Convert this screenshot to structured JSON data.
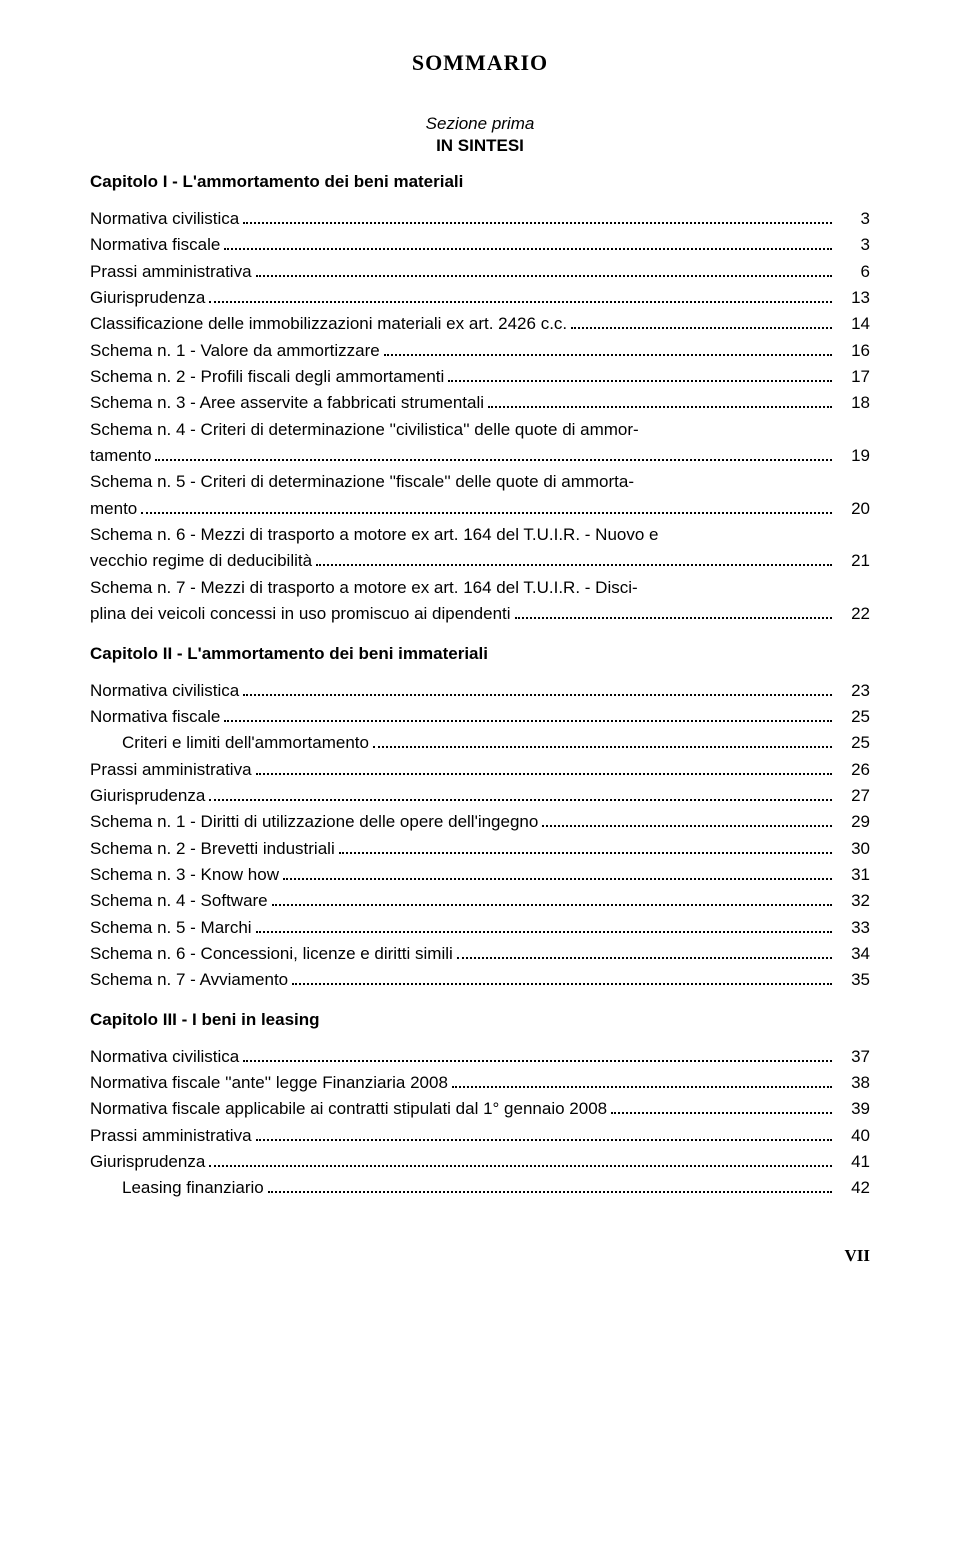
{
  "title": "SOMMARIO",
  "title_fontsize": 22,
  "section_label": "Sezione prima",
  "section_sub": "IN SINTESI",
  "body_fontsize": 17,
  "chapter_fontsize": 17,
  "section_fontsize": 17,
  "text_color": "#000000",
  "background_color": "#ffffff",
  "leader_color": "#000000",
  "chapters": [
    {
      "title": "Capitolo I - L'ammortamento dei beni materiali",
      "entries": [
        {
          "lines": [
            "Normativa civilistica"
          ],
          "page": 3
        },
        {
          "lines": [
            "Normativa fiscale"
          ],
          "page": 3
        },
        {
          "lines": [
            "Prassi amministrativa"
          ],
          "page": 6
        },
        {
          "lines": [
            "Giurisprudenza"
          ],
          "page": 13
        },
        {
          "lines": [
            "Classificazione delle immobilizzazioni materiali ex art. 2426 c.c."
          ],
          "page": 14
        },
        {
          "lines": [
            "Schema n. 1 - Valore da ammortizzare"
          ],
          "page": 16
        },
        {
          "lines": [
            "Schema n. 2 - Profili fiscali degli ammortamenti"
          ],
          "page": 17
        },
        {
          "lines": [
            "Schema n. 3 - Aree asservite a fabbricati strumentali"
          ],
          "page": 18
        },
        {
          "lines": [
            "Schema n. 4 - Criteri di determinazione ''civilistica'' delle quote di ammor-",
            "tamento"
          ],
          "page": 19
        },
        {
          "lines": [
            "Schema n. 5 - Criteri di determinazione ''fiscale'' delle quote di ammorta-",
            "mento"
          ],
          "page": 20
        },
        {
          "lines": [
            "Schema n. 6 - Mezzi di trasporto a motore ex art. 164 del T.U.I.R. - Nuovo e",
            "vecchio regime di deducibilità"
          ],
          "page": 21
        },
        {
          "lines": [
            "Schema n. 7 - Mezzi di trasporto a motore ex art. 164 del T.U.I.R. - Disci-",
            "plina dei veicoli concessi in uso promiscuo ai dipendenti"
          ],
          "page": 22
        }
      ]
    },
    {
      "title": "Capitolo II - L'ammortamento dei beni immateriali",
      "entries": [
        {
          "lines": [
            "Normativa civilistica"
          ],
          "page": 23
        },
        {
          "lines": [
            "Normativa fiscale"
          ],
          "page": 25
        },
        {
          "lines": [
            "Criteri e limiti dell'ammortamento"
          ],
          "page": 25,
          "indent": true
        },
        {
          "lines": [
            "Prassi amministrativa"
          ],
          "page": 26
        },
        {
          "lines": [
            "Giurisprudenza"
          ],
          "page": 27
        },
        {
          "lines": [
            "Schema n. 1 - Diritti di utilizzazione delle opere dell'ingegno"
          ],
          "page": 29
        },
        {
          "lines": [
            "Schema n. 2 - Brevetti industriali"
          ],
          "page": 30
        },
        {
          "lines": [
            "Schema n. 3 - Know how"
          ],
          "page": 31
        },
        {
          "lines": [
            "Schema n. 4 - Software"
          ],
          "page": 32
        },
        {
          "lines": [
            "Schema n. 5 - Marchi"
          ],
          "page": 33
        },
        {
          "lines": [
            "Schema n. 6 - Concessioni, licenze e diritti simili"
          ],
          "page": 34
        },
        {
          "lines": [
            "Schema n. 7 - Avviamento"
          ],
          "page": 35
        }
      ]
    },
    {
      "title": "Capitolo III - I beni in leasing",
      "entries": [
        {
          "lines": [
            "Normativa civilistica"
          ],
          "page": 37
        },
        {
          "lines": [
            "Normativa fiscale ''ante'' legge Finanziaria 2008"
          ],
          "page": 38
        },
        {
          "lines": [
            "Normativa fiscale applicabile ai contratti stipulati dal 1° gennaio 2008"
          ],
          "page": 39
        },
        {
          "lines": [
            "Prassi amministrativa"
          ],
          "page": 40
        },
        {
          "lines": [
            "Giurisprudenza"
          ],
          "page": 41
        },
        {
          "lines": [
            "Leasing finanziario"
          ],
          "page": 42,
          "indent": true
        }
      ]
    }
  ],
  "footer_page": "VII",
  "footer_fontsize": 17
}
